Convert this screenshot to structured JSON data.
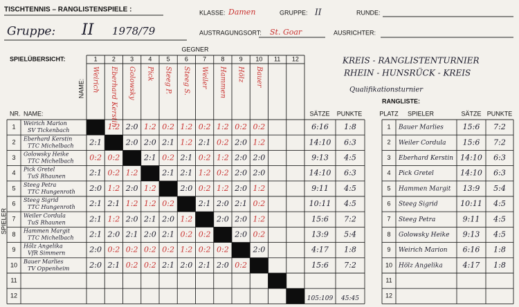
{
  "header": {
    "title": "TISCHTENNIS – RANGLISTENSPIELE :",
    "klasse_label": "KLASSE:",
    "klasse": "Damen",
    "gruppe_label": "GRUPPE:",
    "gruppe": "II",
    "runde_label": "RUNDE:",
    "gruppe_hand": "Gruppe:",
    "gruppe_hand_value": "II",
    "season": "1978/79",
    "ort_label": "AUSTRAGUNGSORT:",
    "ort": "St. Goar",
    "ausrichter_label": "AUSRICHTER:"
  },
  "overview": {
    "label": "SPIELÜBERSICHT:",
    "gegner_label": "GEGNER",
    "name_label": "NAME:",
    "nr_label": "NR.",
    "name_col_label": "NAME:",
    "saetze_label": "SÄTZE",
    "punkte_label": "PUNKTE",
    "spieler_label": "SPIELER",
    "columns": [
      1,
      2,
      3,
      4,
      5,
      6,
      7,
      8,
      9,
      10,
      11,
      12
    ],
    "opponents": [
      "Weirich",
      "Eberhard Kerstin",
      "Golowsky",
      "Pick",
      "Steeg P.",
      "Steeg S.",
      "Weiler",
      "Hammen",
      "Hölz",
      "Bauer"
    ],
    "rows": [
      {
        "nr": 1,
        "name": "Weirich Marion",
        "club": "SV Tickenbach",
        "results": [
          null,
          "1:2",
          "2:0",
          "1:2",
          "0:2",
          "1:2",
          "0:2",
          "1:2",
          "0:2",
          "0:2"
        ],
        "saetze": "6:16",
        "punkte": "1:8"
      },
      {
        "nr": 2,
        "name": "Eberhard Kerstin",
        "club": "TTC Michelbach",
        "results": [
          "2:1",
          null,
          "2:0",
          "2:0",
          "2:1",
          "1:2",
          "2:1",
          "0:2",
          "2:0",
          "1:2"
        ],
        "saetze": "14:10",
        "punkte": "6:3"
      },
      {
        "nr": 3,
        "name": "Golowsky Heike",
        "club": "TTC Michelbach",
        "results": [
          "0:2",
          "0:2",
          null,
          "2:1",
          "0:2",
          "2:1",
          "0:2",
          "1:2",
          "2:0",
          "2:0"
        ],
        "saetze": "9:13",
        "punkte": "4:5"
      },
      {
        "nr": 4,
        "name": "Pick Gretel",
        "club": "TuS Rhaunen",
        "results": [
          "2:1",
          "0:2",
          "1:2",
          null,
          "2:1",
          "2:1",
          "1:2",
          "0:2",
          "2:0",
          "2:0"
        ],
        "saetze": "14:10",
        "punkte": "6:3"
      },
      {
        "nr": 5,
        "name": "Steeg Petra",
        "club": "TTC Hungenroth",
        "results": [
          "2:0",
          "1:2",
          "2:0",
          "1:2",
          null,
          "2:0",
          "0:2",
          "1:2",
          "2:0",
          "1:2"
        ],
        "saetze": "9:11",
        "punkte": "4:5"
      },
      {
        "nr": 6,
        "name": "Steeg Sigrid",
        "club": "TTC Hungenroth",
        "results": [
          "2:1",
          "2:1",
          "1:2",
          "1:2",
          "0:2",
          null,
          "2:1",
          "2:0",
          "2:1",
          "0:2"
        ],
        "saetze": "10:11",
        "punkte": "4:5"
      },
      {
        "nr": 7,
        "name": "Weiler Cordula",
        "club": "TuS Rhaunen",
        "results": [
          "2:1",
          "1:2",
          "2:0",
          "2:1",
          "2:0",
          "1:2",
          null,
          "2:0",
          "2:0",
          "1:2"
        ],
        "saetze": "15:6",
        "punkte": "7:2"
      },
      {
        "nr": 8,
        "name": "Hammen Margit",
        "club": "TTC Michelbach",
        "results": [
          "2:1",
          "2:0",
          "2:1",
          "2:0",
          "2:1",
          "0:2",
          "0:2",
          null,
          "2:0",
          "0:2"
        ],
        "saetze": "13:9",
        "punkte": "5:4"
      },
      {
        "nr": 9,
        "name": "Hölz Angelika",
        "club": "VfR Simmern",
        "results": [
          "2:0",
          "0:2",
          "0:2",
          "0:2",
          "0:2",
          "1:2",
          "0:2",
          "0:2",
          null,
          "2:0"
        ],
        "saetze": "4:17",
        "punkte": "1:8"
      },
      {
        "nr": 10,
        "name": "Bauer Marlies",
        "club": "TV Oppenheim",
        "results": [
          "2:0",
          "2:1",
          "0:2",
          "0:2",
          "2:1",
          "2:0",
          "2:1",
          "2:0",
          "0:2",
          null
        ],
        "saetze": "15:6",
        "punkte": "7:2"
      },
      {
        "nr": 11
      },
      {
        "nr": 12
      }
    ],
    "total_saetze": "105:109",
    "total_punkte": "45:45"
  },
  "tournament": {
    "line1": "KREIS - RANGLISTENTURNIER",
    "line2": "RHEIN - HUNSRÜCK - KREIS",
    "line3": "Qualifikationsturnier"
  },
  "ranking": {
    "label": "RANGLISTE:",
    "platz_label": "PLATZ",
    "spieler_label": "SPIELER",
    "saetze_label": "SÄTZE",
    "punkte_label": "PUNKTE",
    "rows": [
      {
        "platz": 1,
        "spieler": "Bauer Marlies",
        "saetze": "15:6",
        "punkte": "7:2"
      },
      {
        "platz": 2,
        "spieler": "Weiler Cordula",
        "saetze": "15:6",
        "punkte": "7:2"
      },
      {
        "platz": 3,
        "spieler": "Eberhard Kerstin",
        "saetze": "14:10",
        "punkte": "6:3"
      },
      {
        "platz": 4,
        "spieler": "Pick Gretel",
        "saetze": "14:10",
        "punkte": "6:3"
      },
      {
        "platz": 5,
        "spieler": "Hammen Margit",
        "saetze": "13:9",
        "punkte": "5:4"
      },
      {
        "platz": 6,
        "spieler": "Steeg Sigrid",
        "saetze": "10:11",
        "punkte": "4:5"
      },
      {
        "platz": 7,
        "spieler": "Steeg Petra",
        "saetze": "9:11",
        "punkte": "4:5"
      },
      {
        "platz": 8,
        "spieler": "Golowsky Heike",
        "saetze": "9:13",
        "punkte": "4:5"
      },
      {
        "platz": 9,
        "spieler": "Weirich Marion",
        "saetze": "6:16",
        "punkte": "1:8"
      },
      {
        "platz": 10,
        "spieler": "Hölz Angelika",
        "saetze": "4:17",
        "punkte": "1:8"
      },
      {
        "platz": 11
      },
      {
        "platz": 12
      }
    ]
  }
}
